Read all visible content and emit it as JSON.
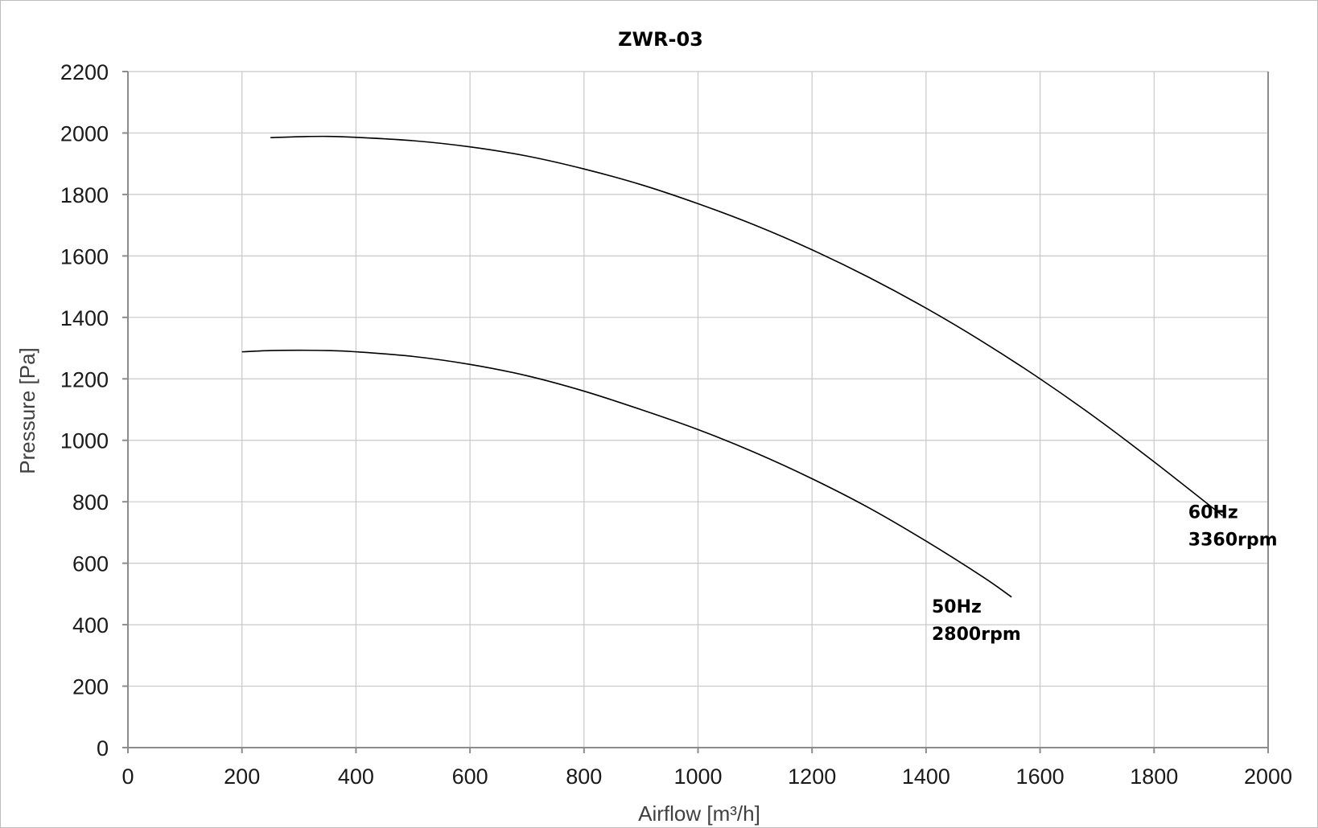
{
  "chart_data": {
    "type": "line",
    "title": "ZWR-03",
    "xlabel": "Airflow [m³/h]",
    "ylabel": "Pressure [Pa]",
    "xlim": [
      0,
      2000
    ],
    "ylim": [
      0,
      2200
    ],
    "x_ticks": [
      0,
      200,
      400,
      600,
      800,
      1000,
      1200,
      1400,
      1600,
      1800,
      2000
    ],
    "y_ticks": [
      0,
      200,
      400,
      600,
      800,
      1000,
      1200,
      1400,
      1600,
      1800,
      2000,
      2200
    ],
    "grid": true,
    "legend": "none",
    "line_color": "#000000",
    "series": [
      {
        "label_lines": [
          "60Hz",
          "3360rpm"
        ],
        "points": [
          [
            250,
            1985
          ],
          [
            300,
            1988
          ],
          [
            350,
            1989
          ],
          [
            400,
            1986
          ],
          [
            500,
            1975
          ],
          [
            600,
            1955
          ],
          [
            700,
            1925
          ],
          [
            800,
            1883
          ],
          [
            900,
            1832
          ],
          [
            1000,
            1770
          ],
          [
            1100,
            1700
          ],
          [
            1200,
            1620
          ],
          [
            1300,
            1530
          ],
          [
            1400,
            1430
          ],
          [
            1500,
            1320
          ],
          [
            1600,
            1200
          ],
          [
            1700,
            1070
          ],
          [
            1800,
            930
          ],
          [
            1920,
            755
          ]
        ]
      },
      {
        "label_lines": [
          "50Hz",
          "2800rpm"
        ],
        "points": [
          [
            200,
            1288
          ],
          [
            250,
            1292
          ],
          [
            300,
            1293
          ],
          [
            350,
            1292
          ],
          [
            400,
            1288
          ],
          [
            500,
            1273
          ],
          [
            600,
            1247
          ],
          [
            700,
            1210
          ],
          [
            800,
            1160
          ],
          [
            900,
            1100
          ],
          [
            1000,
            1035
          ],
          [
            1100,
            960
          ],
          [
            1200,
            875
          ],
          [
            1300,
            780
          ],
          [
            1400,
            672
          ],
          [
            1500,
            555
          ],
          [
            1550,
            490
          ]
        ]
      }
    ]
  }
}
